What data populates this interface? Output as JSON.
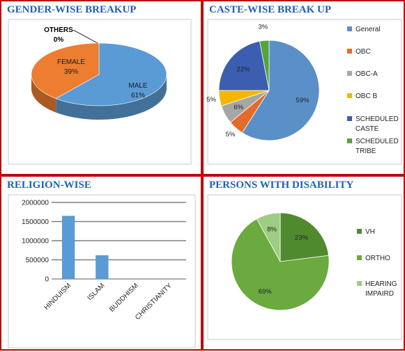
{
  "panels": {
    "gender_title": "GENDER-WISE BREAKUP",
    "caste_title": "CASTE-WISE BREAK UP",
    "religion_title": "RELIGION-WISE",
    "disability_title": "PERSONS WITH DISABILITY"
  },
  "chart_data": [
    {
      "type": "pie",
      "id": "gender",
      "categories": [
        "MALE",
        "FEMALE",
        "OTHERS"
      ],
      "values": [
        61,
        39,
        0
      ],
      "labels": [
        "61%",
        "39%",
        "0%"
      ],
      "colors": [
        "#5b9bd5",
        "#ed7d31",
        "#a5a5a5"
      ],
      "style": "3d",
      "legend": "none"
    },
    {
      "type": "pie",
      "id": "caste",
      "categories": [
        "General",
        "OBC",
        "OBC-A",
        "OBC-B",
        "SCHEDULED CASTE",
        "SCHEDULED TRIBE"
      ],
      "legend_labels": [
        "General",
        "OBC",
        "OBC-A",
        "OBC B",
        "SCHEDULED CASTE",
        "SCHEDULED TRIBE"
      ],
      "values": [
        59,
        5,
        6,
        5,
        22,
        3
      ],
      "labels": [
        "59%",
        "5%",
        "6%",
        "5%",
        "22%",
        "3%"
      ],
      "colors": [
        "#5b8fc7",
        "#e46c2a",
        "#a6a6a6",
        "#f2b800",
        "#3b5eb1",
        "#53a43b"
      ],
      "legend": "right"
    },
    {
      "type": "bar",
      "id": "religion",
      "categories": [
        "HINDUISM",
        "ISLAM",
        "BUDDHISM",
        "CHRISTIANITY"
      ],
      "values": [
        1650000,
        620000,
        0,
        0
      ],
      "ylim": [
        0,
        2000000
      ],
      "yticks": [
        "0",
        "500000",
        "1000000",
        "1500000",
        "2000000"
      ],
      "color": "#5b9bd5",
      "grid": true,
      "legend": "none"
    },
    {
      "type": "pie",
      "id": "disability",
      "categories": [
        "VH",
        "ORTHO",
        "HEARING IMPAIRD"
      ],
      "values": [
        23,
        69,
        8
      ],
      "labels": [
        "23%",
        "69%",
        "8%"
      ],
      "colors": [
        "#4f8a2e",
        "#6aaa3e",
        "#9ccd82"
      ],
      "legend": "right"
    }
  ]
}
